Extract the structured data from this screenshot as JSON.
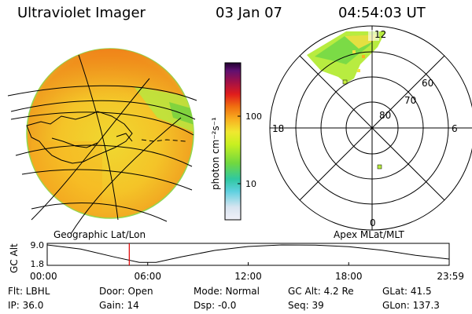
{
  "header": {
    "title": "Ultraviolet Imager",
    "date": "03 Jan 07",
    "time": "04:54:03 UT"
  },
  "panels": {
    "left_label": "Geographic Lat/Lon",
    "right_label": "Apex MLat/MLT"
  },
  "colorbar": {
    "unit_label": "photon cm⁻²s⁻¹",
    "ticks": [
      "100",
      "10"
    ],
    "colors": [
      "#e8e8f4",
      "#9be0e8",
      "#28c8d0",
      "#70d040",
      "#b8f020",
      "#f0e830",
      "#f8a018",
      "#f07010",
      "#e02020",
      "#b01040",
      "#a01080",
      "#300050"
    ]
  },
  "polar": {
    "mlt_labels": [
      "12",
      "18",
      "6",
      "0"
    ],
    "lat_labels": [
      "60",
      "70",
      "80"
    ]
  },
  "chart_data": {
    "type": "line",
    "title": "",
    "xlabel": "",
    "ylabel": "GC Alt",
    "x_ticks": [
      "00:00",
      "06:00",
      "12:00",
      "18:00",
      "23:59"
    ],
    "y_ticks": [
      "9.0",
      "1.8"
    ],
    "xlim": [
      0,
      24
    ],
    "ylim": [
      1.8,
      9.0
    ],
    "marker_time": 4.9,
    "series": [
      {
        "x": [
          0,
          2,
          4,
          5.5,
          6.5,
          8,
          10,
          12,
          14,
          16,
          18,
          20,
          22,
          23.99
        ],
        "values": [
          9.0,
          7.4,
          4.4,
          2.3,
          2.3,
          4.4,
          6.9,
          8.4,
          9.0,
          8.9,
          8.3,
          7.0,
          5.0,
          3.6
        ]
      }
    ]
  },
  "info": {
    "flt": "Flt: LBHL",
    "ip": "IP: 36.0",
    "door": "Door: Open",
    "gain": "Gain: 14",
    "mode": "Mode: Normal",
    "dsp": "Dsp:   -0.0",
    "gcalt": "GC Alt: 4.2 Re",
    "seq": "Seq: 39",
    "glat": "GLat:   41.5",
    "glon": "GLon: 137.3"
  }
}
